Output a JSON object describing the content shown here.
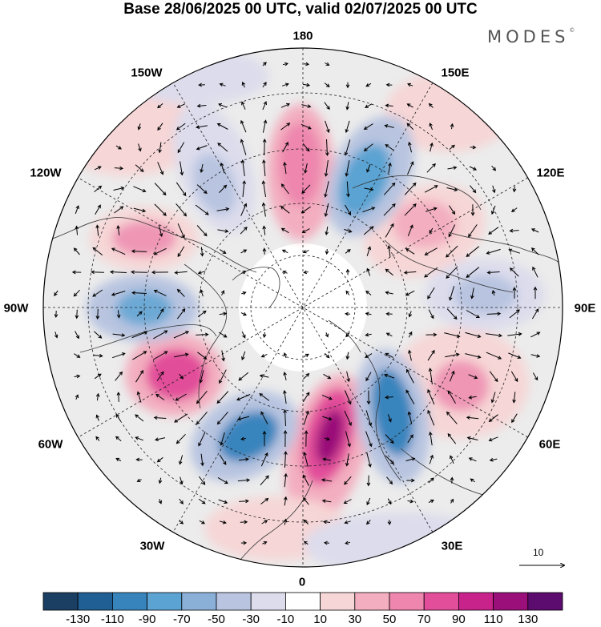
{
  "title": "Base 28/06/2025 00 UTC, valid 02/07/2025 00 UTC",
  "brand": "MODES",
  "brand_mark": "©",
  "longitude_labels": {
    "lon_180": "180",
    "lon_150e": "150E",
    "lon_120e": "120E",
    "lon_90e": "90E",
    "lon_60e": "60E",
    "lon_30e": "30E",
    "lon_0": "0",
    "lon_30w": "30W",
    "lon_60w": "60W",
    "lon_90w": "90W",
    "lon_120w": "120W",
    "lon_150w": "150W"
  },
  "vector_scale": "10",
  "colorbar": {
    "colors": [
      "#1a3f63",
      "#1f5f94",
      "#3784bd",
      "#5aa3d2",
      "#8ab0d8",
      "#b8c4e0",
      "#dcdcec",
      "#ffffff",
      "#f6d6d6",
      "#f3aec0",
      "#ee86ad",
      "#e24e9a",
      "#c8228b",
      "#9a0f79",
      "#5c0b6e"
    ],
    "labels": [
      "-130",
      "-110",
      "-90",
      "-70",
      "-50",
      "-30",
      "-10",
      "10",
      "30",
      "50",
      "70",
      "90",
      "110",
      "130"
    ]
  }
}
